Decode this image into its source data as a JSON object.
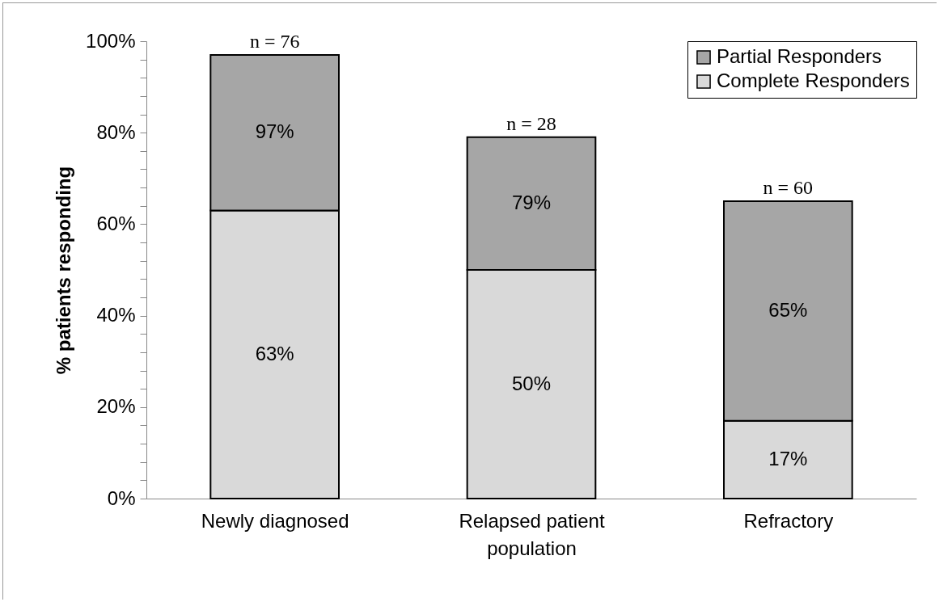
{
  "chart_data": {
    "type": "bar",
    "stacked": true,
    "ylabel": "% patients responding",
    "categories": [
      "Newly diagnosed",
      "Relapsed patient population",
      "Refractory"
    ],
    "series": [
      {
        "name": "Complete Responders",
        "color": "#d9d9d9",
        "values": [
          63,
          50,
          17
        ],
        "value_labels": [
          "63%",
          "50%",
          "17%"
        ]
      },
      {
        "name": "Partial Responders",
        "color": "#a6a6a6",
        "values": [
          34,
          29,
          48
        ]
      }
    ],
    "ylim": [
      0,
      100
    ],
    "yticks": [
      {
        "value": 0,
        "label": "0%"
      },
      {
        "value": 4,
        "label": null
      },
      {
        "value": 8,
        "label": null
      },
      {
        "value": 12,
        "label": null
      },
      {
        "value": 16,
        "label": null
      },
      {
        "value": 20,
        "label": "20%"
      },
      {
        "value": 24,
        "label": null
      },
      {
        "value": 28,
        "label": null
      },
      {
        "value": 32,
        "label": null
      },
      {
        "value": 36,
        "label": null
      },
      {
        "value": 40,
        "label": "40%"
      },
      {
        "value": 44,
        "label": null
      },
      {
        "value": 48,
        "label": null
      },
      {
        "value": 52,
        "label": null
      },
      {
        "value": 56,
        "label": null
      },
      {
        "value": 60,
        "label": "60%"
      },
      {
        "value": 64,
        "label": null
      },
      {
        "value": 68,
        "label": null
      },
      {
        "value": 72,
        "label": null
      },
      {
        "value": 76,
        "label": null
      },
      {
        "value": 80,
        "label": "80%"
      },
      {
        "value": 84,
        "label": null
      },
      {
        "value": 88,
        "label": null
      },
      {
        "value": 92,
        "label": null
      },
      {
        "value": 96,
        "label": null
      },
      {
        "value": 100,
        "label": "100%"
      }
    ],
    "annotations": [
      {
        "text": "n = 76",
        "x": "Newly diagnosed",
        "y": 97
      },
      {
        "text": "n = 28",
        "x": "Relapsed patient population",
        "y": 79
      },
      {
        "text": "n = 60",
        "x": "Refractory",
        "y": 65
      },
      "97%",
      "79%",
      "65%"
    ],
    "grid": false,
    "legend": "top right"
  }
}
